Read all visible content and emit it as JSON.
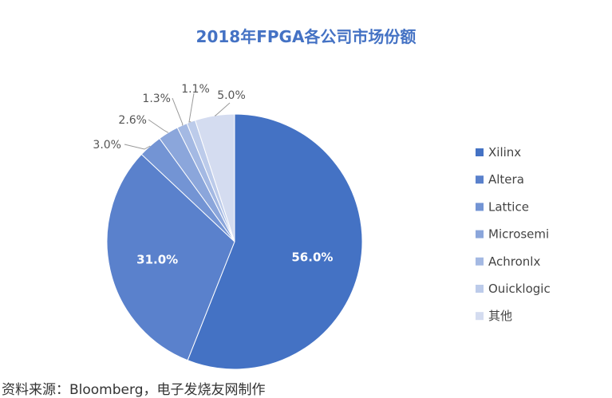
{
  "chart_data": {
    "type": "pie",
    "title": "2018年FPGA各公司市场份额",
    "categories": [
      "Xilinx",
      "Altera",
      "Lattice",
      "Microsemi",
      "Achronlx",
      "Ouicklogic",
      "其他"
    ],
    "values": [
      56.0,
      31.0,
      3.0,
      2.6,
      1.3,
      1.1,
      5.0
    ],
    "labels": [
      "56.0%",
      "31.0%",
      "3.0%",
      "2.6%",
      "1.3%",
      "1.1%",
      "5.0%"
    ],
    "colors": [
      "#4472c4",
      "#5a81cc",
      "#7394d4",
      "#8ba6db",
      "#a4b9e3",
      "#bccbea",
      "#d4dcf0"
    ],
    "legend_position": "right"
  },
  "source": "资料来源：Bloomberg，电子发烧友网制作"
}
